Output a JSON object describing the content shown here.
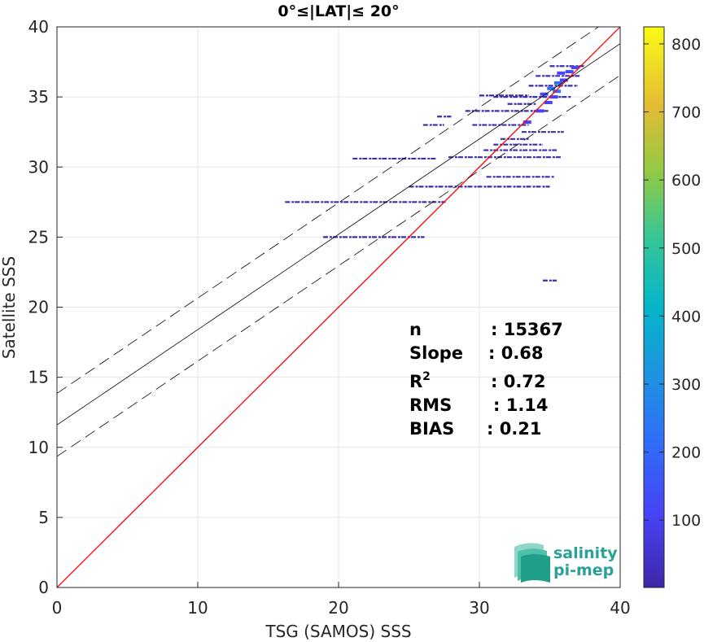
{
  "chart_data": {
    "type": "scatter",
    "title": "0°≤|LAT|≤ 20°",
    "xlabel": "TSG (SAMOS) SSS",
    "ylabel": "Satellite SSS",
    "xlim": [
      0,
      40
    ],
    "ylim": [
      0,
      40
    ],
    "x_ticks": [
      "0",
      "10",
      "20",
      "30",
      "40"
    ],
    "y_ticks": [
      "0",
      "5",
      "10",
      "15",
      "20",
      "25",
      "30",
      "35",
      "40"
    ],
    "grid": true,
    "colorbar": {
      "range": [
        1,
        825
      ],
      "ticks": [
        "100",
        "200",
        "300",
        "400",
        "500",
        "600",
        "700",
        "800"
      ],
      "tick_values": [
        100,
        200,
        300,
        400,
        500,
        600,
        700,
        800
      ],
      "colormap": "parula"
    },
    "lines": {
      "identity": {
        "x": [
          0,
          40
        ],
        "y": [
          0,
          40
        ],
        "color": "#ff0000"
      },
      "regression": {
        "intercept": 11.6,
        "slope": 0.68,
        "color": "#000000"
      },
      "regression_offset": 2.25
    },
    "stats": {
      "n_label": "n",
      "n_value": ": 15367",
      "slope_label": "Slope",
      "slope_value": ": 0.68",
      "r2_label": "R",
      "r2_sup": "2",
      "r2_value": ": 0.72",
      "rms_label": "RMS",
      "rms_value": ": 1.14",
      "bias_label": "BIAS",
      "bias_value": ": 0.21"
    },
    "density_segments": [
      {
        "x1": 16.2,
        "x2": 27.6,
        "y": 27.5
      },
      {
        "x1": 18.9,
        "x2": 26.1,
        "y": 25.0
      },
      {
        "x1": 21.0,
        "x2": 27.0,
        "y": 30.6
      },
      {
        "x1": 25.0,
        "x2": 35.0,
        "y": 28.6
      },
      {
        "x1": 30.5,
        "x2": 35.3,
        "y": 29.3
      },
      {
        "x1": 27.8,
        "x2": 35.8,
        "y": 30.7
      },
      {
        "x1": 30.3,
        "x2": 35.5,
        "y": 31.2
      },
      {
        "x1": 29.5,
        "x2": 33.5,
        "y": 33.0
      },
      {
        "x1": 26.0,
        "x2": 27.5,
        "y": 33.0
      },
      {
        "x1": 29.0,
        "x2": 35.0,
        "y": 34.0
      },
      {
        "x1": 31.0,
        "x2": 36.5,
        "y": 35.0
      },
      {
        "x1": 30.0,
        "x2": 33.5,
        "y": 35.1
      },
      {
        "x1": 33.5,
        "x2": 37.0,
        "y": 35.8
      },
      {
        "x1": 34.0,
        "x2": 37.2,
        "y": 36.5
      },
      {
        "x1": 35.0,
        "x2": 37.5,
        "y": 37.2
      },
      {
        "x1": 31.5,
        "x2": 33.5,
        "y": 32.0
      },
      {
        "x1": 33.0,
        "x2": 36.0,
        "y": 32.5
      },
      {
        "x1": 34.5,
        "x2": 35.5,
        "y": 21.9
      },
      {
        "x1": 27.0,
        "x2": 28.0,
        "y": 33.6
      },
      {
        "x1": 32.0,
        "x2": 34.0,
        "y": 34.5
      },
      {
        "x1": 31.0,
        "x2": 34.5,
        "y": 31.6
      }
    ],
    "density_points": [
      {
        "x": 34.6,
        "y": 35.2,
        "v": 180
      },
      {
        "x": 35.1,
        "y": 35.6,
        "v": 220
      },
      {
        "x": 35.6,
        "y": 36.0,
        "v": 240
      },
      {
        "x": 36.0,
        "y": 36.2,
        "v": 200
      },
      {
        "x": 35.8,
        "y": 36.7,
        "v": 160
      },
      {
        "x": 35.3,
        "y": 35.0,
        "v": 150
      },
      {
        "x": 34.9,
        "y": 34.6,
        "v": 140
      },
      {
        "x": 36.4,
        "y": 36.8,
        "v": 170
      },
      {
        "x": 36.8,
        "y": 37.1,
        "v": 130
      },
      {
        "x": 34.3,
        "y": 34.0,
        "v": 120
      },
      {
        "x": 33.4,
        "y": 33.2,
        "v": 110
      },
      {
        "x": 35.5,
        "y": 35.4,
        "v": 210
      }
    ]
  },
  "logo": {
    "line1": "salinity",
    "line2": "pi-mep",
    "color": "#2aa198"
  }
}
